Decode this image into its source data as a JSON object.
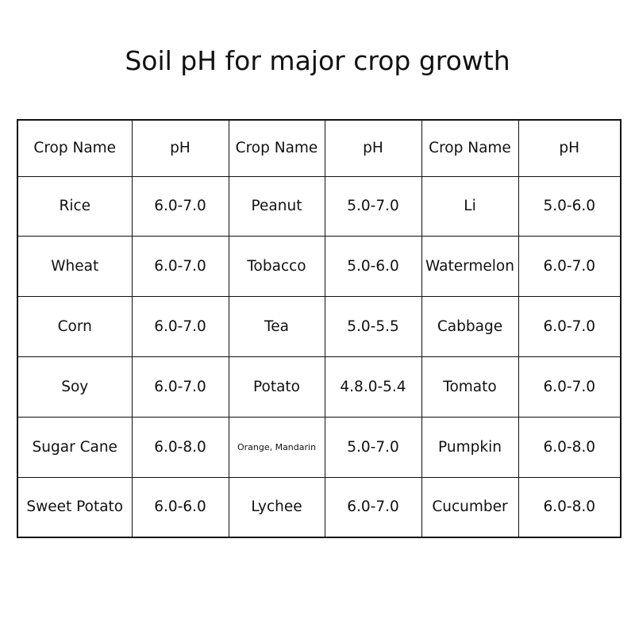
{
  "title": "Soil pH for major crop growth",
  "table": {
    "headers": [
      "Crop Name",
      "pH",
      "Crop Name",
      "pH",
      "Crop Name",
      "pH"
    ],
    "rows": [
      [
        "Rice",
        "6.0-7.0",
        "Peanut",
        "5.0-7.0",
        "Li",
        "5.0-6.0"
      ],
      [
        "Wheat",
        "6.0-7.0",
        "Tobacco",
        "5.0-6.0",
        "Watermelon",
        "6.0-7.0"
      ],
      [
        "Corn",
        "6.0-7.0",
        "Tea",
        "5.0-5.5",
        "Cabbage",
        "6.0-7.0"
      ],
      [
        "Soy",
        "6.0-7.0",
        "Potato",
        "4.8.0-5.4",
        "Tomato",
        "6.0-7.0"
      ],
      [
        "Sugar Cane",
        "6.0-8.0",
        "Orange, Mandarin",
        "5.0-7.0",
        "Pumpkin",
        "6.0-8.0"
      ],
      [
        "Sweet Potato",
        "6.0-6.0",
        "Lychee",
        "6.0-7.0",
        "Cucumber",
        "6.0-8.0"
      ]
    ]
  }
}
